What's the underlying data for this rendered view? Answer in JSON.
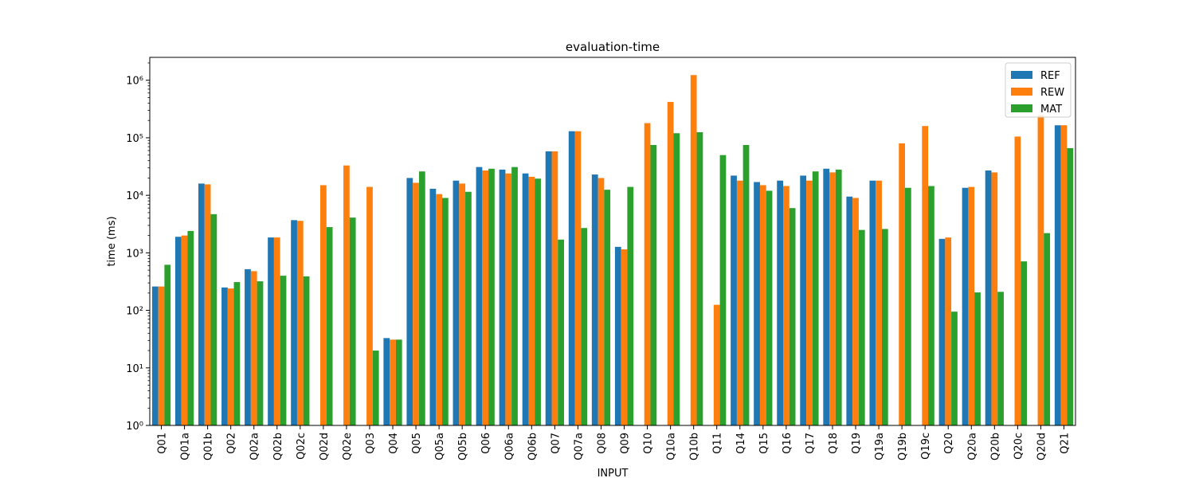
{
  "chart_data": {
    "type": "bar",
    "title": "evaluation-time",
    "xlabel": "INPUT",
    "ylabel": "time (ms)",
    "yscale": "log",
    "ylim": [
      1,
      2500000
    ],
    "ytick_values": [
      1,
      10,
      100,
      1000,
      10000,
      100000,
      1000000
    ],
    "legend_position": "upper right",
    "categories": [
      "Q01",
      "Q01a",
      "Q01b",
      "Q02",
      "Q02a",
      "Q02b",
      "Q02c",
      "Q02d",
      "Q02e",
      "Q03",
      "Q04",
      "Q05",
      "Q05a",
      "Q05b",
      "Q06",
      "Q06a",
      "Q06b",
      "Q07",
      "Q07a",
      "Q08",
      "Q09",
      "Q10",
      "Q10a",
      "Q10b",
      "Q11",
      "Q14",
      "Q15",
      "Q16",
      "Q17",
      "Q18",
      "Q19",
      "Q19a",
      "Q19b",
      "Q19c",
      "Q20",
      "Q20a",
      "Q20b",
      "Q20c",
      "Q20d",
      "Q21"
    ],
    "series": [
      {
        "name": "REF",
        "color": "#1f77b4",
        "values": [
          260,
          1900,
          16000,
          250,
          520,
          1850,
          3700,
          null,
          null,
          null,
          33,
          20000,
          13000,
          18000,
          31000,
          28000,
          24000,
          58000,
          130000,
          23000,
          1270,
          null,
          null,
          null,
          null,
          22000,
          17000,
          18000,
          22000,
          29000,
          9500,
          18000,
          null,
          null,
          1750,
          13500,
          27000,
          null,
          null,
          165000
        ]
      },
      {
        "name": "REW",
        "color": "#ff7f0e",
        "values": [
          260,
          2000,
          15500,
          240,
          480,
          1850,
          3600,
          15000,
          33000,
          14000,
          31,
          16500,
          10500,
          16000,
          27000,
          24000,
          21000,
          58000,
          130000,
          20000,
          1150,
          180000,
          420000,
          1230000,
          125,
          18000,
          15000,
          14500,
          18000,
          25000,
          9000,
          18000,
          80000,
          160000,
          1850,
          14000,
          25000,
          105000,
          250000,
          165000
        ]
      },
      {
        "name": "MAT",
        "color": "#2ca02c",
        "values": [
          620,
          2400,
          4700,
          310,
          320,
          400,
          390,
          2800,
          4100,
          20,
          31,
          26000,
          9000,
          11500,
          29000,
          31000,
          19500,
          1700,
          2700,
          12500,
          14000,
          75000,
          120000,
          125000,
          50000,
          75000,
          12000,
          6000,
          26000,
          28000,
          2500,
          2600,
          13500,
          14500,
          95,
          205,
          210,
          710,
          2200,
          66000
        ]
      }
    ]
  }
}
